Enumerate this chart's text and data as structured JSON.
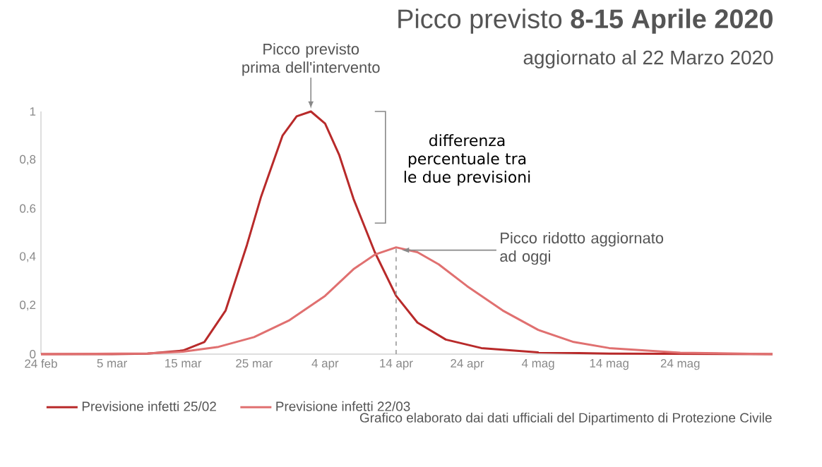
{
  "chart_data": {
    "type": "line",
    "title": "Picco previsto **8-15 Aprile 2020**",
    "subtitle": "aggiornato al 22 Marzo 2020",
    "xlim": [
      "2020-02-24",
      "2020-06-06"
    ],
    "xticks": [
      {
        "value": "2020-02-24",
        "label": "24 feb"
      },
      {
        "value": "2020-03-05",
        "label": "5 mar"
      },
      {
        "value": "2020-03-15",
        "label": "15 mar"
      },
      {
        "value": "2020-03-25",
        "label": "25 mar"
      },
      {
        "value": "2020-04-04",
        "label": "4 apr"
      },
      {
        "value": "2020-04-14",
        "label": "14 apr"
      },
      {
        "value": "2020-04-24",
        "label": "24 apr"
      },
      {
        "value": "2020-05-04",
        "label": "4 mag"
      },
      {
        "value": "2020-05-14",
        "label": "14 mag"
      },
      {
        "value": "2020-05-24",
        "label": "24 mag"
      }
    ],
    "ylim": [
      0,
      1
    ],
    "yticks": [
      0,
      {
        "value": 0.2,
        "label": "0,2"
      },
      {
        "value": 0.4,
        "label": "0,4"
      },
      {
        "value": 0.6,
        "label": "0.6"
      },
      {
        "value": 0.8,
        "label": "0,8"
      },
      1
    ],
    "series": [
      {
        "name": "Previsione infetti 25/02",
        "color": "#b82a2a",
        "x": [
          "2020-02-24",
          "2020-03-05",
          "2020-03-10",
          "2020-03-15",
          "2020-03-18",
          "2020-03-21",
          "2020-03-24",
          "2020-03-26",
          "2020-03-29",
          "2020-03-31",
          "2020-04-02",
          "2020-04-04",
          "2020-04-06",
          "2020-04-08",
          "2020-04-11",
          "2020-04-14",
          "2020-04-17",
          "2020-04-21",
          "2020-04-26",
          "2020-05-04",
          "2020-05-14",
          "2020-06-06"
        ],
        "values": [
          0,
          0,
          0.002,
          0.015,
          0.05,
          0.18,
          0.45,
          0.65,
          0.9,
          0.98,
          1.0,
          0.95,
          0.82,
          0.64,
          0.42,
          0.24,
          0.13,
          0.06,
          0.025,
          0.007,
          0.002,
          0
        ]
      },
      {
        "name": "Previsione infetti 22/03",
        "color": "#e07070",
        "x": [
          "2020-02-24",
          "2020-03-10",
          "2020-03-15",
          "2020-03-20",
          "2020-03-25",
          "2020-03-30",
          "2020-04-04",
          "2020-04-08",
          "2020-04-11",
          "2020-04-14",
          "2020-04-17",
          "2020-04-20",
          "2020-04-24",
          "2020-04-29",
          "2020-05-04",
          "2020-05-09",
          "2020-05-14",
          "2020-05-24",
          "2020-06-06"
        ],
        "values": [
          0,
          0.003,
          0.01,
          0.03,
          0.07,
          0.14,
          0.24,
          0.35,
          0.41,
          0.44,
          0.42,
          0.37,
          0.28,
          0.18,
          0.1,
          0.05,
          0.025,
          0.006,
          0
        ]
      }
    ],
    "ref_lines": [
      {
        "axis": "x",
        "value": "2020-04-14",
        "color": "#999999",
        "line_style": "dashed"
      }
    ],
    "annotations": [
      "differenza percentuale tra le due previsioni",
      {
        "text": "Picco previsto prima dell'intervento",
        "x": "2020-04-02",
        "y": 1
      },
      {
        "text": "Picco ridotto aggiornato ad oggi",
        "x": "2020-04-14",
        "y": 0.44
      },
      "Grafico elaborato  dai dati ufficiali del Dipartimento di Protezione Civile"
    ],
    "legend": "bottom"
  }
}
